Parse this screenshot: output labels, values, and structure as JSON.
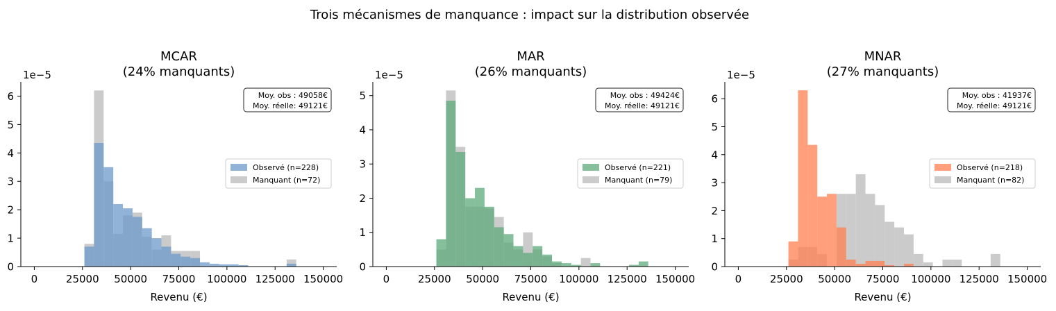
{
  "figure": {
    "suptitle": "Trois mécanismes de manquance : impact sur la distribution observée"
  },
  "chart_data": [
    {
      "type": "histogram",
      "title_line1": "MCAR",
      "title_line2": "(24% manquants)",
      "xlabel": "Revenu (€)",
      "xlim": [
        -7000,
        157000
      ],
      "xticks": [
        0,
        25000,
        50000,
        75000,
        100000,
        125000,
        150000
      ],
      "xtick_labels": [
        "0",
        "25000",
        "50000",
        "75000",
        "100000",
        "125000",
        "150000"
      ],
      "ylim": [
        0,
        6.5
      ],
      "yticks": [
        0,
        1,
        2,
        3,
        4,
        5,
        6
      ],
      "ytick_labels": [
        "0",
        "1",
        "2",
        "3",
        "4",
        "5",
        "6"
      ],
      "y_scale_label": "1e−5",
      "observed_color": "#6b9ac9",
      "missing_color": "#bdbdbd",
      "missing_bins": {
        "start": 26000,
        "width": 5000,
        "values": [
          0.8,
          6.2,
          3.0,
          1.15,
          1.8,
          1.9,
          1.05,
          0.6,
          1.1,
          0.55,
          0.55,
          0.55,
          0,
          0,
          0,
          0,
          0,
          0,
          0,
          0,
          0,
          0.25
        ]
      },
      "observed_bins": {
        "start": 26000,
        "width": 5000,
        "values": [
          0.7,
          4.35,
          3.5,
          2.2,
          2.05,
          1.75,
          1.35,
          1.0,
          0.7,
          0.45,
          0.35,
          0.3,
          0.15,
          0.1,
          0.08,
          0.08,
          0.05,
          0,
          0,
          0,
          0,
          0.1
        ]
      },
      "legend": [
        {
          "label": "Observé (n=228)"
        },
        {
          "label": "Manquant (n=72)"
        }
      ],
      "stats_box": {
        "line1": "Moy. obs  : 49058€",
        "line2": "Moy. réelle: 49121€"
      }
    },
    {
      "type": "histogram",
      "title_line1": "MAR",
      "title_line2": "(26% manquants)",
      "xlabel": "Revenu (€)",
      "xlim": [
        -7000,
        157000
      ],
      "xticks": [
        0,
        25000,
        50000,
        75000,
        100000,
        125000,
        150000
      ],
      "xtick_labels": [
        "0",
        "25000",
        "50000",
        "75000",
        "100000",
        "125000",
        "150000"
      ],
      "ylim": [
        0,
        5.4
      ],
      "yticks": [
        0,
        1,
        2,
        3,
        4,
        5
      ],
      "ytick_labels": [
        "0",
        "1",
        "2",
        "3",
        "4",
        "5"
      ],
      "y_scale_label": "1e−5",
      "observed_color": "#5ea97a",
      "missing_color": "#bdbdbd",
      "missing_bins": {
        "start": 26000,
        "width": 5000,
        "values": [
          0.5,
          5.15,
          3.5,
          1.75,
          1.75,
          1.7,
          1.45,
          0.7,
          0.5,
          1.0,
          0.5,
          0.3,
          0.1,
          0,
          0,
          0.25,
          0,
          0,
          0,
          0,
          0,
          0
        ]
      },
      "observed_bins": {
        "start": 26000,
        "width": 5000,
        "values": [
          0.8,
          4.85,
          3.35,
          2.0,
          2.3,
          1.75,
          1.15,
          0.95,
          0.6,
          0.4,
          0.6,
          0.35,
          0.15,
          0.1,
          0.05,
          0,
          0.1,
          0,
          0,
          0,
          0.05,
          0.15
        ]
      },
      "legend": [
        {
          "label": "Observé (n=221)"
        },
        {
          "label": "Manquant (n=79)"
        }
      ],
      "stats_box": {
        "line1": "Moy. obs  : 49424€",
        "line2": "Moy. réelle: 49121€"
      }
    },
    {
      "type": "histogram",
      "title_line1": "MNAR",
      "title_line2": "(27% manquants)",
      "xlabel": "Revenu (€)",
      "xlim": [
        -7000,
        157000
      ],
      "xticks": [
        0,
        25000,
        50000,
        75000,
        100000,
        125000,
        150000
      ],
      "xtick_labels": [
        "0",
        "25000",
        "50000",
        "75000",
        "100000",
        "125000",
        "150000"
      ],
      "ylim": [
        0,
        6.6
      ],
      "yticks": [
        0,
        1,
        2,
        3,
        4,
        5,
        6
      ],
      "ytick_labels": [
        "0",
        "1",
        "2",
        "3",
        "4",
        "5",
        "6"
      ],
      "y_scale_label": "1e−5",
      "observed_color": "#ff7f50",
      "missing_color": "#bdbdbd",
      "missing_bins": {
        "start": 26000,
        "width": 5000,
        "values": [
          0.25,
          0.7,
          0.7,
          0.45,
          0,
          2.6,
          2.6,
          3.3,
          2.6,
          2.2,
          1.6,
          1.4,
          1.15,
          0.45,
          0.15,
          0,
          0.25,
          0.25,
          0,
          0,
          0,
          0.45
        ]
      },
      "observed_bins": {
        "start": 26000,
        "width": 5000,
        "values": [
          0.9,
          6.3,
          4.35,
          2.5,
          2.6,
          1.4,
          0.25,
          0.1,
          0.2,
          0.2,
          0.05,
          0,
          0.1,
          0,
          0,
          0,
          0,
          0,
          0,
          0,
          0,
          0
        ]
      },
      "legend": [
        {
          "label": "Observé (n=218)"
        },
        {
          "label": "Manquant (n=82)"
        }
      ],
      "stats_box": {
        "line1": "Moy. obs  : 41937€",
        "line2": "Moy. réelle: 49121€"
      }
    }
  ]
}
